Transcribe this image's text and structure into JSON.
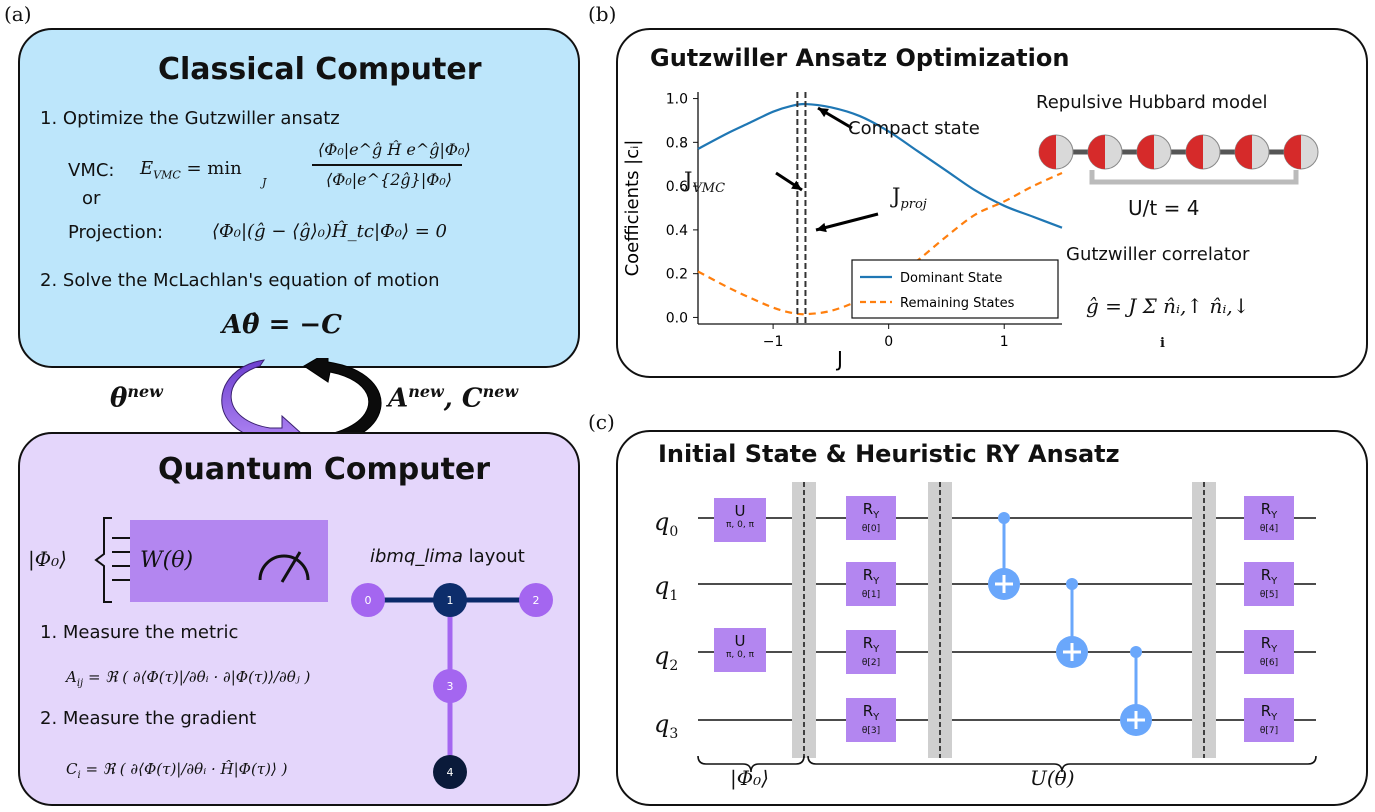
{
  "labels": {
    "a": "(a)",
    "b": "(b)",
    "c": "(c)"
  },
  "colors": {
    "classical_bg": "#bde6fb",
    "quantum_bg": "#e4d6fb",
    "gate": "#b386f0",
    "cnot": "#6aa7fb",
    "dominant": "#1f77b4",
    "remaining": "#ff7f0e",
    "node_purple": "#a466f0",
    "node_navy": "#0d2d6b",
    "node_dark": "#0a1a3a"
  },
  "classical": {
    "title": "Classical Computer",
    "step1": "1. Optimize the Gutzwiller ansatz",
    "vmc_label": "VMC:",
    "vmc_lhs": "E",
    "vmc_sub": "VMC",
    "vmc_eq": "= min",
    "vmc_min_sub": "J",
    "vmc_num": "⟨Φ₀|e^ĝ Ĥ e^ĝ|Φ₀⟩",
    "vmc_den": "⟨Φ₀|e^{2ĝ}|Φ₀⟩",
    "or": "or",
    "proj_label": "Projection:",
    "proj_eq": "⟨Φ₀|(ĝ − ⟨ĝ⟩₀)Ĥ_tc|Φ₀⟩ = 0",
    "step2": "2. Solve the McLachlan's equation of motion",
    "eom": "Aθ̇ = −C"
  },
  "loop": {
    "theta_new": "θ",
    "theta_sup": "new",
    "ac_new": "A",
    "ac_sup1": "new",
    "ac_mid": ", C",
    "ac_sup2": "new"
  },
  "quantum": {
    "title": "Quantum Computer",
    "phi0": "|Φ₀⟩",
    "W": "W(θ)",
    "layout_name": "ibmq_lima",
    "layout_word": " layout",
    "nodes": [
      "0",
      "1",
      "2",
      "3",
      "4"
    ],
    "step1": "1. Measure the metric",
    "metric_lhs": "A",
    "metric_sub": "ij",
    "metric_rhs": "= ℜ ( ∂⟨Φ(τ)|/∂θᵢ · ∂|Φ(τ)⟩/∂θⱼ )",
    "step2": "2. Measure the gradient",
    "grad_lhs": "C",
    "grad_sub": "i",
    "grad_rhs": "= ℜ ( ∂⟨Φ(τ)|/∂θᵢ · Ĥ|Φ(τ)⟩ )"
  },
  "gutz": {
    "title": "Gutzwiller Ansatz Optimization",
    "ylabel": "Coefficients |cᵢ|",
    "xlabel": "J",
    "compact": "Compact state",
    "jvmc": "J",
    "jvmc_sub": "VMC",
    "jproj": "J",
    "jproj_sub": "proj",
    "hubbard_title": "Repulsive Hubbard model",
    "ut": "U/t = 4",
    "correlator_title": "Gutzwiller correlator",
    "correlator_eq": "ĝ = J Σ n̂ᵢ,↑ n̂ᵢ,↓",
    "correlator_sub": "i"
  },
  "chart_data": {
    "type": "line",
    "xlabel": "J",
    "ylabel": "Coefficients |cᵢ|",
    "xlim": [
      -1.65,
      1.5
    ],
    "ylim": [
      -0.03,
      1.03
    ],
    "xticks": [
      "−1",
      "0",
      "1"
    ],
    "xtick_values": [
      -1,
      0,
      1
    ],
    "yticks": [
      "0.0",
      "0.2",
      "0.4",
      "0.6",
      "0.8",
      "1.0"
    ],
    "ytick_values": [
      0.0,
      0.2,
      0.4,
      0.6,
      0.8,
      1.0
    ],
    "legend_position": "lower-right",
    "vlines": [
      -0.79,
      -0.72
    ],
    "series": [
      {
        "name": "Dominant State",
        "color": "#1f77b4",
        "style": "solid",
        "x": [
          -1.65,
          -1.4,
          -1.2,
          -1.0,
          -0.85,
          -0.72,
          -0.5,
          -0.25,
          0.0,
          0.25,
          0.5,
          0.75,
          1.0,
          1.25,
          1.5
        ],
        "y": [
          0.77,
          0.84,
          0.89,
          0.94,
          0.965,
          0.975,
          0.96,
          0.92,
          0.85,
          0.76,
          0.67,
          0.58,
          0.51,
          0.46,
          0.41
        ]
      },
      {
        "name": "Remaining States",
        "color": "#ff7f0e",
        "style": "dashed",
        "x": [
          -1.65,
          -1.4,
          -1.2,
          -1.0,
          -0.85,
          -0.72,
          -0.5,
          -0.25,
          0.0,
          0.25,
          0.5,
          0.75,
          1.0,
          1.25,
          1.5
        ],
        "y": [
          0.21,
          0.14,
          0.09,
          0.045,
          0.022,
          0.015,
          0.03,
          0.08,
          0.16,
          0.26,
          0.37,
          0.47,
          0.53,
          0.6,
          0.66
        ]
      }
    ]
  },
  "circuit": {
    "title": "Initial State & Heuristic RY Ansatz",
    "qubits": [
      "q",
      "q",
      "q",
      "q"
    ],
    "qubit_subs": [
      "0",
      "1",
      "2",
      "3"
    ],
    "u_gate": "U",
    "u_params": "π, 0, π",
    "ry": "R",
    "ry_sub": "Y",
    "thetas": [
      "θ[0]",
      "θ[1]",
      "θ[2]",
      "θ[3]",
      "θ[4]",
      "θ[5]",
      "θ[6]",
      "θ[7]"
    ],
    "brace1": "|Φ₀⟩",
    "brace2": "U(θ)"
  }
}
